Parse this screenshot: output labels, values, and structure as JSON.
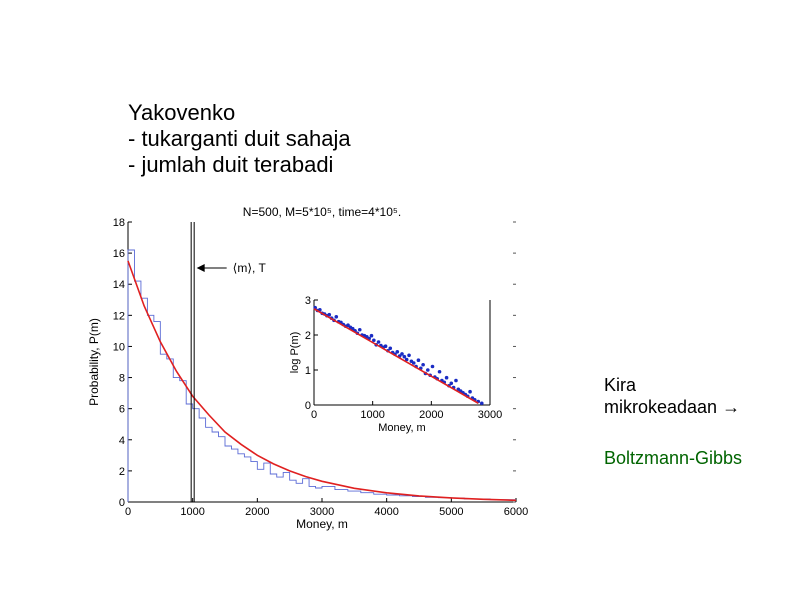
{
  "slide": {
    "title_lines": [
      "Yakovenko",
      "- tukarganti duit sahaja",
      "- jumlah duit terabadi"
    ],
    "note_line1": "Kira",
    "note_line2": "mikrokeadaan",
    "arrow_symbol": "→",
    "note_green": "Boltzmann-Gibbs",
    "green_color": "#006400"
  },
  "chart_data": [
    {
      "type": "line",
      "title": "N=500, M=5*10⁵, time=4*10⁵.",
      "xlabel": "Money, m",
      "ylabel": "Probability, P(m)",
      "xlim": [
        0,
        6000
      ],
      "ylim": [
        0,
        18
      ],
      "xticks": [
        0,
        1000,
        2000,
        3000,
        4000,
        5000,
        6000
      ],
      "yticks": [
        0,
        2,
        4,
        6,
        8,
        10,
        12,
        14,
        16,
        18
      ],
      "annotation": "⟨m⟩, T",
      "annotation_x": 1000,
      "series": [
        {
          "type": "step",
          "color": "#5b6bd6",
          "x": [
            0,
            100,
            200,
            300,
            400,
            500,
            600,
            700,
            800,
            900,
            1000,
            1100,
            1200,
            1300,
            1400,
            1500,
            1600,
            1700,
            1800,
            1900,
            2000,
            2100,
            2200,
            2300,
            2400,
            2500,
            2600,
            2700,
            2800,
            2900,
            3000,
            3200,
            3400,
            3600,
            3800,
            4000,
            4200,
            4400,
            4600,
            4800,
            5000,
            5200,
            5400,
            5600,
            6000
          ],
          "y": [
            16.2,
            14.2,
            13.1,
            12.0,
            11.6,
            9.5,
            9.2,
            8.0,
            7.8,
            6.3,
            6.0,
            5.4,
            4.8,
            4.5,
            4.2,
            3.6,
            3.4,
            3.1,
            2.9,
            2.6,
            2.1,
            2.5,
            1.8,
            1.6,
            1.9,
            1.4,
            1.2,
            1.5,
            1.0,
            0.9,
            1.0,
            0.8,
            0.7,
            0.6,
            0.5,
            0.45,
            0.4,
            0.35,
            0.3,
            0.28,
            0.25,
            0.2,
            0.2,
            0.15,
            0.1
          ]
        },
        {
          "type": "line",
          "color": "#e02020",
          "x": [
            0,
            250,
            500,
            750,
            1000,
            1250,
            1500,
            1750,
            2000,
            2250,
            2500,
            2750,
            3000,
            3500,
            4000,
            4500,
            5000,
            5500,
            6000
          ],
          "y": [
            15.5,
            12.6,
            10.3,
            8.4,
            6.8,
            5.6,
            4.5,
            3.7,
            3.0,
            2.45,
            2.0,
            1.63,
            1.33,
            0.88,
            0.59,
            0.39,
            0.26,
            0.17,
            0.11
          ]
        }
      ]
    },
    {
      "type": "scatter",
      "title": "",
      "xlabel": "Money, m",
      "ylabel": "log P(m)",
      "xlim": [
        0,
        3000
      ],
      "ylim": [
        0,
        3
      ],
      "xticks": [
        0,
        1000,
        2000,
        3000
      ],
      "yticks": [
        0,
        1,
        2,
        3
      ],
      "series": [
        {
          "type": "scatter",
          "color": "#1a2cc4",
          "x": [
            20,
            60,
            100,
            140,
            180,
            220,
            260,
            300,
            340,
            380,
            420,
            460,
            500,
            540,
            580,
            620,
            660,
            700,
            740,
            780,
            820,
            860,
            900,
            940,
            980,
            1020,
            1060,
            1100,
            1140,
            1180,
            1220,
            1260,
            1300,
            1340,
            1380,
            1420,
            1460,
            1500,
            1540,
            1580,
            1620,
            1660,
            1700,
            1740,
            1780,
            1820,
            1860,
            1900,
            1940,
            1980,
            2020,
            2060,
            2100,
            2140,
            2180,
            2220,
            2260,
            2300,
            2340,
            2380,
            2420,
            2460,
            2500,
            2540,
            2580,
            2620,
            2660,
            2700,
            2740,
            2800,
            2860
          ],
          "y": [
            2.78,
            2.7,
            2.72,
            2.62,
            2.6,
            2.55,
            2.58,
            2.48,
            2.42,
            2.52,
            2.38,
            2.36,
            2.3,
            2.25,
            2.28,
            2.22,
            2.18,
            2.12,
            2.05,
            2.15,
            2.0,
            1.98,
            1.95,
            1.9,
            1.98,
            1.85,
            1.72,
            1.8,
            1.7,
            1.65,
            1.68,
            1.55,
            1.62,
            1.5,
            1.45,
            1.52,
            1.4,
            1.46,
            1.38,
            1.3,
            1.42,
            1.25,
            1.2,
            1.1,
            1.28,
            1.05,
            1.15,
            0.9,
            1.0,
            0.85,
            1.1,
            0.8,
            0.75,
            0.95,
            0.7,
            0.65,
            0.78,
            0.55,
            0.62,
            0.5,
            0.7,
            0.45,
            0.4,
            0.35,
            0.3,
            0.25,
            0.38,
            0.2,
            0.15,
            0.1,
            0.05
          ]
        },
        {
          "type": "line",
          "color": "#e02020",
          "x": [
            0,
            2800
          ],
          "y": [
            2.75,
            0.05
          ]
        }
      ]
    }
  ]
}
